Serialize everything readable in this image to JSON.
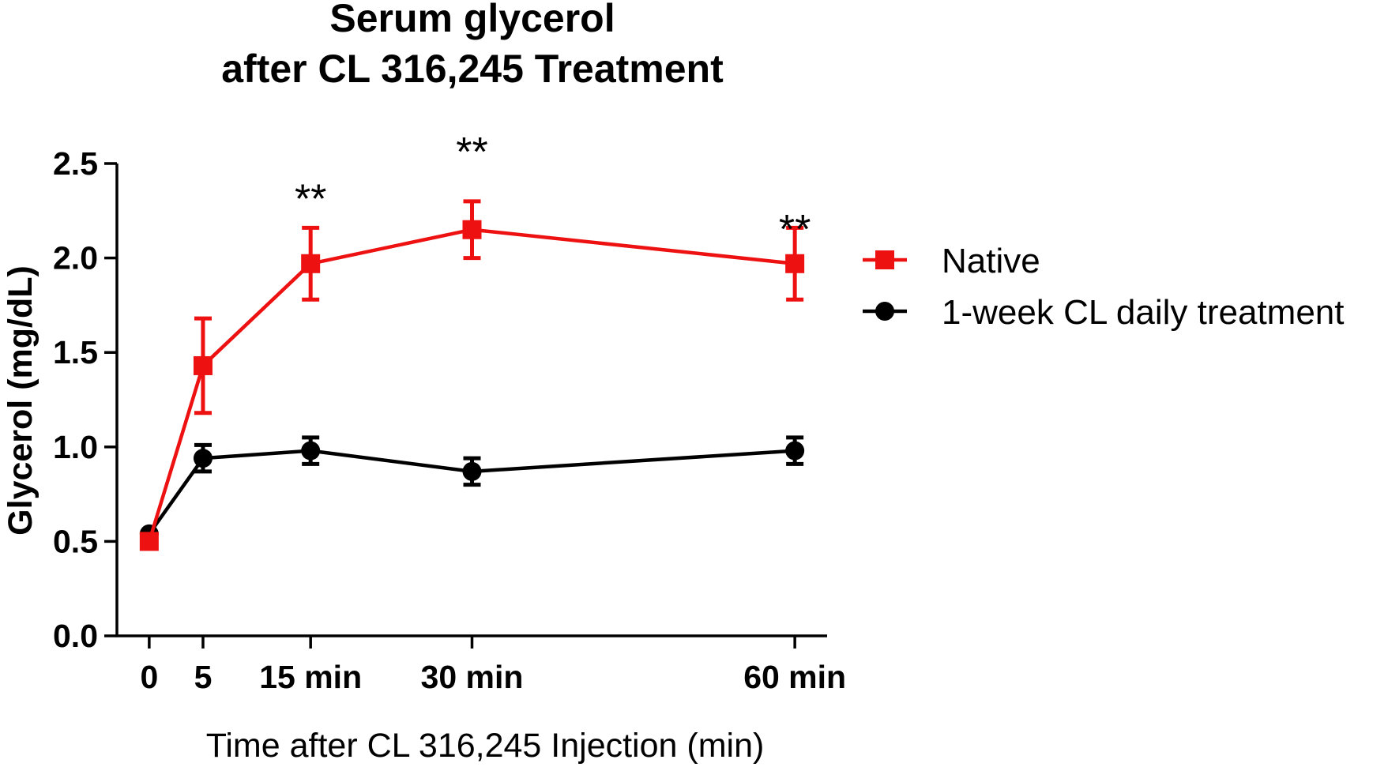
{
  "chart_data": {
    "type": "line",
    "title_lines": [
      "Serum glycerol",
      "after CL 316,245 Treatment"
    ],
    "xlabel": "Time after CL 316,245 Injection (min)",
    "ylabel": "Glycerol (mg/dL)",
    "x": [
      0,
      5,
      15,
      30,
      60
    ],
    "x_tick_labels": [
      "0",
      "5",
      "15 min",
      "30 min",
      "60 min"
    ],
    "xlim": [
      -3,
      63
    ],
    "ylim": [
      0,
      2.5
    ],
    "y_ticks": [
      0.0,
      0.5,
      1.0,
      1.5,
      2.0,
      2.5
    ],
    "y_tick_labels": [
      "0.0",
      "0.5",
      "1.0",
      "1.5",
      "2.0",
      "2.5"
    ],
    "grid": false,
    "legend_position": "right",
    "series": [
      {
        "name": "Native",
        "color": "#ee1111",
        "marker": "square",
        "values": [
          0.5,
          1.43,
          1.97,
          2.15,
          1.97
        ],
        "errors": [
          0.0,
          0.25,
          0.19,
          0.15,
          0.19
        ]
      },
      {
        "name": "1-week CL daily treatment",
        "color": "#000000",
        "marker": "circle",
        "values": [
          0.54,
          0.94,
          0.98,
          0.87,
          0.98
        ],
        "errors": [
          0.0,
          0.07,
          0.07,
          0.07,
          0.07
        ]
      }
    ],
    "annotations": [
      {
        "x": 15,
        "y": 2.33,
        "text": "**"
      },
      {
        "x": 30,
        "y": 2.58,
        "text": "**"
      },
      {
        "x": 60,
        "y": 2.17,
        "text": "**"
      }
    ]
  }
}
